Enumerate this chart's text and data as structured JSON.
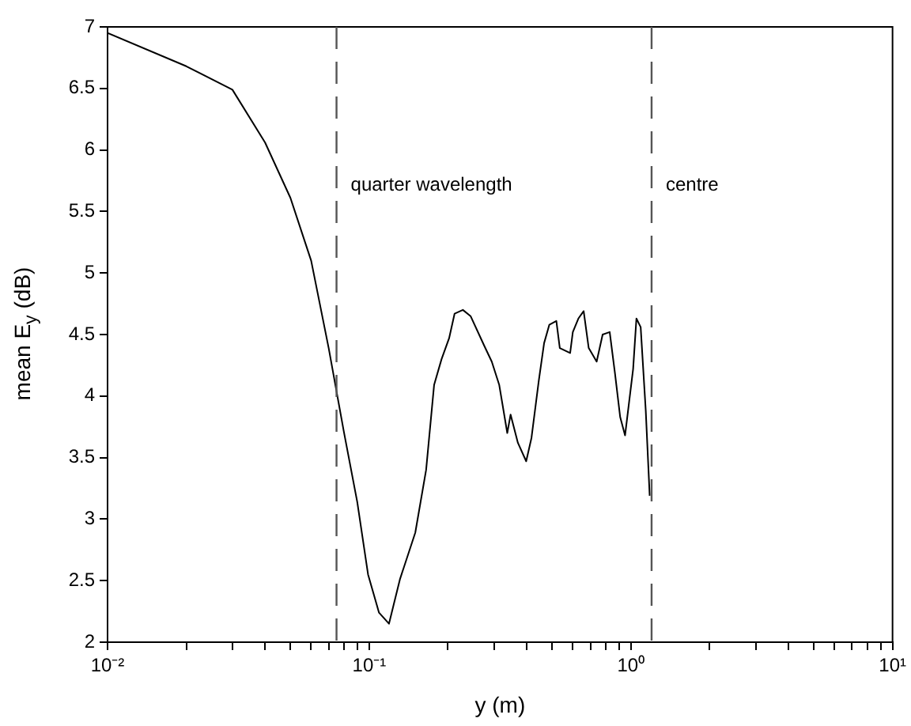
{
  "chart_data": {
    "type": "line",
    "xlabel": "y (m)",
    "ylabel": "mean E$_{y}$ (dB)",
    "log": "x",
    "grid": false,
    "legend": false,
    "marker": "none",
    "line_style": "solid",
    "xlim": [
      0.01,
      10
    ],
    "ylim": [
      2,
      7
    ],
    "xticks": [
      {
        "value": 0.01,
        "label": "10⁻²"
      },
      {
        "value": 0.02,
        "label": null
      },
      {
        "value": 0.03,
        "label": null
      },
      {
        "value": 0.04,
        "label": null
      },
      {
        "value": 0.05,
        "label": null
      },
      {
        "value": 0.06,
        "label": null
      },
      {
        "value": 0.07,
        "label": null
      },
      {
        "value": 0.08,
        "label": null
      },
      {
        "value": 0.09,
        "label": null
      },
      {
        "value": 0.1,
        "label": "10⁻¹"
      },
      {
        "value": 0.2,
        "label": null
      },
      {
        "value": 0.3,
        "label": null
      },
      {
        "value": 0.4,
        "label": null
      },
      {
        "value": 0.5,
        "label": null
      },
      {
        "value": 0.6,
        "label": null
      },
      {
        "value": 0.7,
        "label": null
      },
      {
        "value": 0.8,
        "label": null
      },
      {
        "value": 0.9,
        "label": null
      },
      {
        "value": 1,
        "label": "10⁰"
      },
      {
        "value": 2,
        "label": null
      },
      {
        "value": 3,
        "label": null
      },
      {
        "value": 4,
        "label": null
      },
      {
        "value": 5,
        "label": null
      },
      {
        "value": 6,
        "label": null
      },
      {
        "value": 7,
        "label": null
      },
      {
        "value": 8,
        "label": null
      },
      {
        "value": 9,
        "label": null
      },
      {
        "value": 10,
        "label": "10¹"
      }
    ],
    "yticks": [
      2,
      2.5,
      3,
      3.5,
      4,
      4.5,
      5,
      5.5,
      6,
      6.5,
      7
    ],
    "ref_lines": [
      {
        "axis": "x",
        "value": 0.075,
        "label": "quarter wavelength",
        "color": "#555555",
        "line_style": "dashed"
      },
      {
        "axis": "x",
        "value": 1.2,
        "label": "centre",
        "color": "#555555",
        "line_style": "dashed"
      }
    ],
    "series": [
      {
        "color": "#000000",
        "x": [
          0.01,
          0.02,
          0.03,
          0.04,
          0.05,
          0.06,
          0.07,
          0.08,
          0.09,
          0.099,
          0.109,
          0.119,
          0.131,
          0.15,
          0.165,
          0.177,
          0.189,
          0.202,
          0.212,
          0.228,
          0.244,
          0.275,
          0.294,
          0.314,
          0.337,
          0.347,
          0.37,
          0.398,
          0.417,
          0.445,
          0.466,
          0.488,
          0.519,
          0.535,
          0.586,
          0.6,
          0.63,
          0.66,
          0.69,
          0.74,
          0.78,
          0.83,
          0.87,
          0.91,
          0.95,
          1.02,
          1.05,
          1.09,
          1.14,
          1.18
        ],
        "values": [
          6.95,
          6.68,
          6.49,
          6.06,
          5.61,
          5.1,
          4.39,
          3.71,
          3.14,
          2.55,
          2.24,
          2.15,
          2.51,
          2.89,
          3.4,
          4.09,
          4.3,
          4.47,
          4.67,
          4.7,
          4.65,
          4.41,
          4.28,
          4.09,
          3.7,
          3.85,
          3.62,
          3.47,
          3.66,
          4.13,
          4.43,
          4.58,
          4.61,
          4.39,
          4.35,
          4.52,
          4.63,
          4.69,
          4.39,
          4.28,
          4.5,
          4.52,
          4.18,
          3.83,
          3.68,
          4.22,
          4.63,
          4.56,
          3.88,
          3.19
        ]
      }
    ]
  }
}
